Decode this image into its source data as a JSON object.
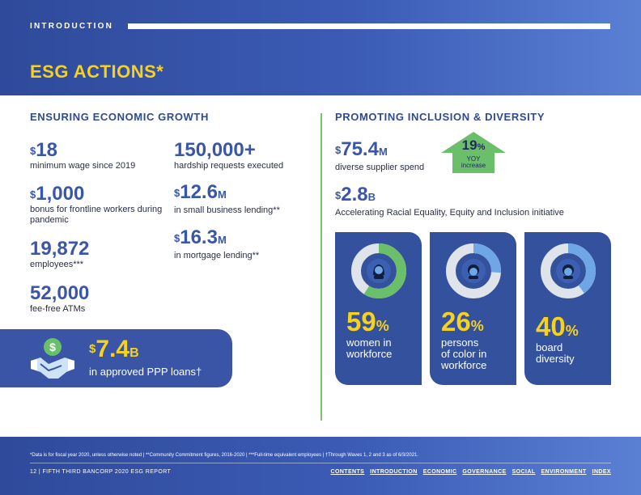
{
  "header": {
    "section_label": "INTRODUCTION",
    "title": "ESG ACTIONS*"
  },
  "left": {
    "heading": "ENSURING ECONOMIC GROWTH",
    "stats": [
      {
        "prefix": "$",
        "value": "18",
        "suffix": "",
        "desc": "minimum wage since 2019"
      },
      {
        "prefix": "$",
        "value": "1,000",
        "suffix": "",
        "desc": "bonus for frontline workers during pandemic"
      },
      {
        "prefix": "",
        "value": "19,872",
        "suffix": "",
        "desc": "employees***"
      },
      {
        "prefix": "",
        "value": "52,000",
        "suffix": "",
        "desc": "fee-free ATMs"
      },
      {
        "prefix": "",
        "value": "150,000+",
        "suffix": "",
        "desc": "hardship requests executed"
      },
      {
        "prefix": "$",
        "value": "12.6",
        "suffix": "M",
        "desc": "in small business lending**"
      },
      {
        "prefix": "$",
        "value": "16.3",
        "suffix": "M",
        "desc": "in mortgage lending**"
      }
    ],
    "ppp": {
      "prefix": "$",
      "value": "7.4",
      "suffix": "B",
      "desc": "in approved PPP loans†",
      "icon": "handshake-dollar-icon"
    }
  },
  "right": {
    "heading": "PROMOTING INCLUSION & DIVERSITY",
    "supplier": {
      "prefix": "$",
      "value": "75.4",
      "suffix": "M",
      "desc": "diverse supplier spend"
    },
    "yoy": {
      "value": "19",
      "unit": "%",
      "line1": "YOY",
      "line2": "increase"
    },
    "initiative": {
      "prefix": "$",
      "value": "2.8",
      "suffix": "B",
      "desc": "Accelerating Racial Equality, Equity and Inclusion initiative"
    },
    "cards": [
      {
        "value": "59",
        "unit": "%",
        "label_lines": [
          "women in",
          "workforce"
        ],
        "fraction": 0.59,
        "icon": "woman-icon"
      },
      {
        "value": "26",
        "unit": "%",
        "label_lines": [
          "persons",
          "of color in",
          "workforce"
        ],
        "fraction": 0.26,
        "icon": "person-icon"
      },
      {
        "value": "40",
        "unit": "%",
        "label_lines": [
          "board",
          "diversity"
        ],
        "fraction": 0.4,
        "icon": "person-icon"
      }
    ]
  },
  "footnote": "*Data is for fiscal year 2020, unless otherwise noted | **Community Commitment figures, 2016-2020 | ***Full-time equivalent employees | †Through Waves 1, 2 and 3 as of 6/3/2021.",
  "footer": {
    "page_info": "12 | FIFTH THIRD BANCORP 2020 ESG REPORT",
    "nav": [
      "CONTENTS",
      "INTRODUCTION",
      "ECONOMIC",
      "GOVERNANCE",
      "SOCIAL",
      "ENVIRONMENT",
      "INDEX"
    ]
  },
  "colors": {
    "brand_blue": "#3a55a5",
    "accent_yellow": "#f6d21e",
    "accent_green": "#7bc36b",
    "donut_green": "#6cbf6a",
    "donut_blue": "#6fa6e6",
    "donut_track": "#dfe3ea"
  }
}
